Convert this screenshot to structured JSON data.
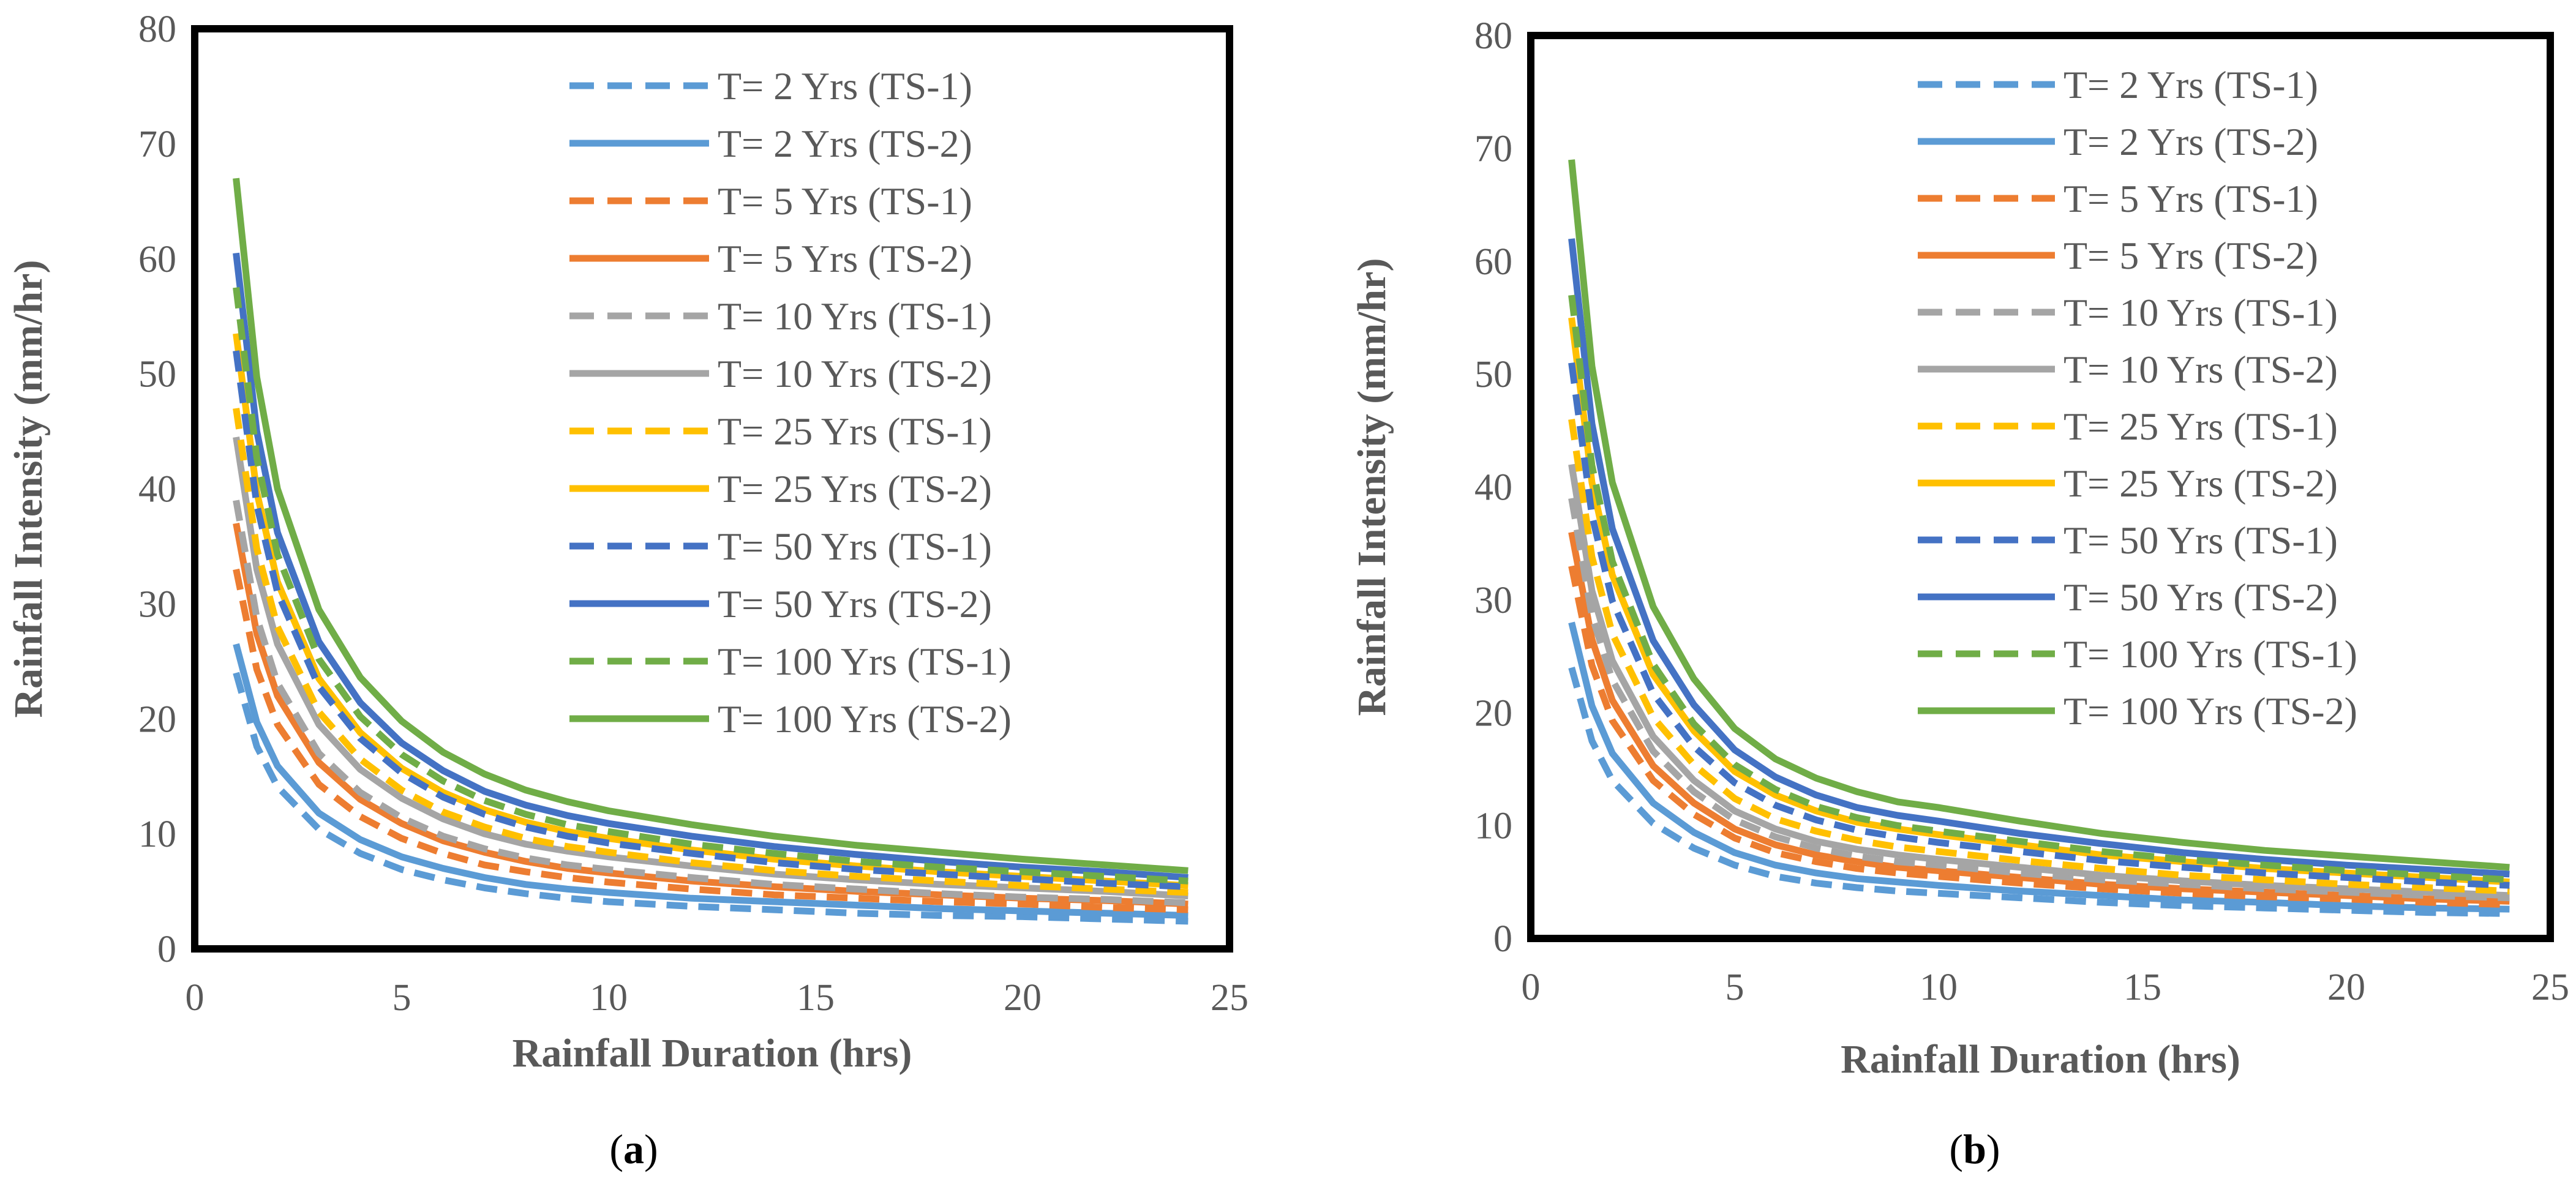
{
  "chart_data": [
    {
      "type": "line",
      "panel_label": "a",
      "xlabel": "Rainfall Duration (hrs)",
      "ylabel": "Rainfall Intensity (mm/hr)",
      "xlim": [
        0,
        25
      ],
      "ylim": [
        0,
        80
      ],
      "xticks": [
        "0",
        "5",
        "10",
        "15",
        "20",
        "25"
      ],
      "yticks": [
        "0",
        "10",
        "20",
        "30",
        "40",
        "50",
        "60",
        "70",
        "80"
      ],
      "legend_position": "top-right",
      "x": [
        1,
        1.5,
        2,
        3,
        4,
        5,
        6,
        7,
        8,
        9,
        10,
        12,
        14,
        16,
        18,
        20,
        22,
        24
      ],
      "series": [
        {
          "name": "T= 2 Yrs (TS-1)",
          "color": "#5B9BD5",
          "dash": true,
          "values": [
            24,
            17.6,
            14.1,
            10.4,
            8.3,
            6.9,
            6,
            5.3,
            4.8,
            4.4,
            4.1,
            3.7,
            3.4,
            3.1,
            2.9,
            2.8,
            2.6,
            2.4
          ]
        },
        {
          "name": "T= 2 Yrs (TS-2)",
          "color": "#5B9BD5",
          "dash": false,
          "values": [
            26.5,
            19.7,
            15.9,
            11.8,
            9.5,
            8,
            7,
            6.2,
            5.6,
            5.2,
            4.9,
            4.4,
            4.1,
            3.8,
            3.5,
            3.3,
            3.1,
            2.9
          ]
        },
        {
          "name": "T= 5 Yrs (TS-1)",
          "color": "#ED7D31",
          "dash": true,
          "values": [
            33,
            24.3,
            19.5,
            14.3,
            11.5,
            9.6,
            8.3,
            7.3,
            6.7,
            6.2,
            5.8,
            5.2,
            4.7,
            4.4,
            4.1,
            3.9,
            3.6,
            3.4
          ]
        },
        {
          "name": "T= 5 Yrs (TS-2)",
          "color": "#ED7D31",
          "dash": false,
          "values": [
            37,
            27.4,
            22,
            16.2,
            13,
            10.9,
            9.4,
            8.4,
            7.6,
            7,
            6.6,
            5.9,
            5.4,
            5,
            4.7,
            4.4,
            4.2,
            3.9
          ]
        },
        {
          "name": "T= 10 Yrs (TS-1)",
          "color": "#A5A5A5",
          "dash": true,
          "values": [
            39,
            28.8,
            23.1,
            17,
            13.6,
            11.4,
            9.8,
            8.7,
            7.9,
            7.3,
            6.9,
            6.2,
            5.6,
            5.2,
            4.8,
            4.5,
            4.3,
            4
          ]
        },
        {
          "name": "T= 10 Yrs (TS-2)",
          "color": "#A5A5A5",
          "dash": false,
          "values": [
            44.5,
            33,
            26.5,
            19.5,
            15.6,
            13.1,
            11.3,
            10,
            9.1,
            8.5,
            8,
            7.2,
            6.5,
            6,
            5.6,
            5.3,
            5,
            4.6
          ]
        },
        {
          "name": "T= 25 Yrs (TS-1)",
          "color": "#FFC000",
          "dash": true,
          "values": [
            47,
            34.8,
            28,
            20.6,
            16.5,
            13.8,
            11.9,
            10.6,
            9.6,
            8.9,
            8.4,
            7.5,
            6.8,
            6.3,
            5.9,
            5.5,
            5.2,
            4.9
          ]
        },
        {
          "name": "T= 25 Yrs (TS-2)",
          "color": "#FFC000",
          "dash": false,
          "values": [
            53.5,
            39.7,
            31.9,
            23.5,
            18.8,
            15.7,
            13.6,
            12.1,
            11,
            10.2,
            9.6,
            8.6,
            7.8,
            7.2,
            6.7,
            6.3,
            5.9,
            5.5
          ]
        },
        {
          "name": "T= 50 Yrs (TS-1)",
          "color": "#4472C4",
          "dash": true,
          "values": [
            52,
            38.6,
            31,
            22.8,
            18.3,
            15.3,
            13.2,
            11.7,
            10.6,
            9.8,
            9.2,
            8.3,
            7.5,
            6.9,
            6.5,
            6.1,
            5.7,
            5.4
          ]
        },
        {
          "name": "T= 50 Yrs (TS-2)",
          "color": "#4472C4",
          "dash": false,
          "values": [
            60.5,
            45,
            36.2,
            26.7,
            21.4,
            17.9,
            15.5,
            13.7,
            12.5,
            11.6,
            10.9,
            9.8,
            8.9,
            8.2,
            7.6,
            7.1,
            6.7,
            6.2
          ]
        },
        {
          "name": "T= 100 Yrs (TS-1)",
          "color": "#70AD47",
          "dash": true,
          "values": [
            57.5,
            42.7,
            34.3,
            25.2,
            20.2,
            16.9,
            14.6,
            12.9,
            11.7,
            10.8,
            10.2,
            9.1,
            8.3,
            7.6,
            7.1,
            6.7,
            6.3,
            5.9
          ]
        },
        {
          "name": "T= 100 Yrs (TS-2)",
          "color": "#70AD47",
          "dash": false,
          "values": [
            67,
            49.7,
            40,
            29.5,
            23.6,
            19.8,
            17.1,
            15.2,
            13.8,
            12.8,
            12,
            10.8,
            9.8,
            9,
            8.4,
            7.8,
            7.3,
            6.8
          ]
        }
      ]
    },
    {
      "type": "line",
      "panel_label": "b",
      "xlabel": "Rainfall Duration (hrs)",
      "ylabel": "Rainfall Intensity (mm/hr)",
      "xlim": [
        0,
        25
      ],
      "ylim": [
        0,
        80
      ],
      "xticks": [
        "0",
        "5",
        "10",
        "15",
        "20",
        "25"
      ],
      "yticks": [
        "0",
        "10",
        "20",
        "30",
        "40",
        "50",
        "60",
        "70",
        "80"
      ],
      "legend_position": "top-right",
      "x": [
        1,
        1.5,
        2,
        3,
        4,
        5,
        6,
        7,
        8,
        9,
        10,
        12,
        14,
        16,
        18,
        20,
        22,
        24
      ],
      "series": [
        {
          "name": "T= 2 Yrs (TS-1)",
          "color": "#5B9BD5",
          "dash": true,
          "values": [
            24,
            17.5,
            14,
            10.2,
            8,
            6.5,
            5.5,
            4.9,
            4.5,
            4.2,
            4,
            3.6,
            3.2,
            2.9,
            2.7,
            2.5,
            2.3,
            2.2
          ]
        },
        {
          "name": "T= 2 Yrs (TS-2)",
          "color": "#5B9BD5",
          "dash": false,
          "values": [
            28,
            20.6,
            16.4,
            12,
            9.4,
            7.6,
            6.5,
            5.8,
            5.3,
            5,
            4.7,
            4.2,
            3.8,
            3.4,
            3.2,
            2.9,
            2.7,
            2.6
          ]
        },
        {
          "name": "T= 5 Yrs (TS-1)",
          "color": "#ED7D31",
          "dash": true,
          "values": [
            33,
            24.2,
            19.3,
            14,
            11,
            8.9,
            7.6,
            6.8,
            6.2,
            5.8,
            5.5,
            4.9,
            4.4,
            4,
            3.7,
            3.5,
            3.2,
            3
          ]
        },
        {
          "name": "T= 5 Yrs (TS-2)",
          "color": "#ED7D31",
          "dash": false,
          "values": [
            36,
            26.5,
            21.1,
            15.3,
            12,
            9.7,
            8.3,
            7.4,
            6.8,
            6.3,
            6,
            5.4,
            4.8,
            4.4,
            4.1,
            3.8,
            3.5,
            3.3
          ]
        },
        {
          "name": "T= 10 Yrs (TS-1)",
          "color": "#A5A5A5",
          "dash": true,
          "values": [
            39,
            28.6,
            22.9,
            16.6,
            13,
            10.5,
            9,
            8,
            7.3,
            6.8,
            6.5,
            5.8,
            5.2,
            4.8,
            4.4,
            4.1,
            3.8,
            3.6
          ]
        },
        {
          "name": "T= 10 Yrs (TS-2)",
          "color": "#A5A5A5",
          "dash": false,
          "values": [
            42,
            30.8,
            24.6,
            17.9,
            14,
            11.3,
            9.7,
            8.6,
            7.9,
            7.4,
            7,
            6.3,
            5.6,
            5.1,
            4.7,
            4.4,
            4.1,
            3.8
          ]
        },
        {
          "name": "T= 25 Yrs (TS-1)",
          "color": "#FFC000",
          "dash": true,
          "values": [
            46,
            33.8,
            27,
            19.6,
            15.4,
            12.4,
            10.6,
            9.5,
            8.7,
            8.1,
            7.7,
            6.9,
            6.2,
            5.6,
            5.2,
            4.8,
            4.5,
            4.2
          ]
        },
        {
          "name": "T= 25 Yrs (TS-2)",
          "color": "#FFC000",
          "dash": false,
          "values": [
            55,
            40.4,
            32.2,
            23.4,
            18.4,
            14.8,
            12.7,
            11.3,
            10.3,
            9.7,
            9.2,
            8.3,
            7.4,
            6.8,
            6.2,
            5.8,
            5.4,
            5
          ]
        },
        {
          "name": "T= 50 Yrs (TS-1)",
          "color": "#4472C4",
          "dash": true,
          "values": [
            51,
            37.5,
            29.9,
            21.7,
            17,
            13.8,
            11.8,
            10.5,
            9.6,
            9,
            8.5,
            7.7,
            6.9,
            6.3,
            5.8,
            5.4,
            5,
            4.7
          ]
        },
        {
          "name": "T= 50 Yrs (TS-2)",
          "color": "#4472C4",
          "dash": false,
          "values": [
            62,
            45.6,
            36.3,
            26.4,
            20.7,
            16.7,
            14.3,
            12.7,
            11.6,
            10.9,
            10.4,
            9.3,
            8.4,
            7.6,
            7,
            6.5,
            6.1,
            5.7
          ]
        },
        {
          "name": "T= 100 Yrs (TS-1)",
          "color": "#70AD47",
          "dash": true,
          "values": [
            57,
            41.9,
            33.4,
            24.3,
            19,
            15.4,
            13.2,
            11.7,
            10.7,
            10,
            9.5,
            8.6,
            7.7,
            7,
            6.5,
            6,
            5.6,
            5.2
          ]
        },
        {
          "name": "T= 100 Yrs (TS-2)",
          "color": "#70AD47",
          "dash": false,
          "values": [
            69,
            50.7,
            40.4,
            29.4,
            23,
            18.6,
            15.9,
            14.2,
            13,
            12.1,
            11.6,
            10.4,
            9.3,
            8.5,
            7.8,
            7.3,
            6.8,
            6.3
          ]
        }
      ]
    }
  ]
}
